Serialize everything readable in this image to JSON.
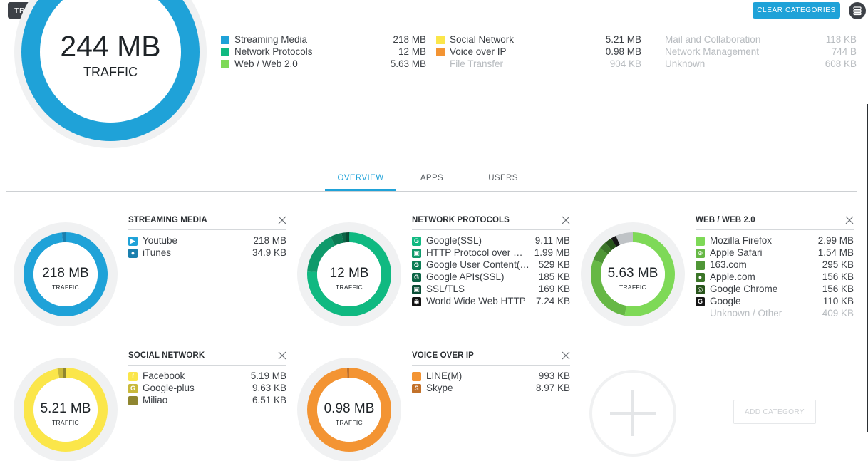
{
  "header": {
    "dropdown_label": "TRAFFIC STATS",
    "clear_label": "CLEAR CATEGORIES"
  },
  "total": {
    "value": "244 MB",
    "label": "TRAFFIC",
    "color": "#1fa2d8"
  },
  "legend": [
    {
      "name": "Streaming Media",
      "value": "218 MB",
      "color": "#1fa2d8",
      "dim": false
    },
    {
      "name": "Network Protocols",
      "value": "12 MB",
      "color": "#10b981",
      "dim": false
    },
    {
      "name": "Web / Web 2.0",
      "value": "5.63 MB",
      "color": "#7ed957",
      "dim": false
    },
    {
      "name": "Social Network",
      "value": "5.21 MB",
      "color": "#fbe64a",
      "dim": false
    },
    {
      "name": "Voice over IP",
      "value": "0.98 MB",
      "color": "#f39433",
      "dim": false
    },
    {
      "name": "File Transfer",
      "value": "904 KB",
      "color": "",
      "dim": true
    },
    {
      "name": "Mail and Collaboration",
      "value": "118 KB",
      "color": "",
      "dim": true
    },
    {
      "name": "Network Management",
      "value": "744 B",
      "color": "",
      "dim": true
    },
    {
      "name": "Unknown",
      "value": "608 KB",
      "color": "",
      "dim": true
    }
  ],
  "tabs": [
    {
      "label": "OVERVIEW",
      "active": true
    },
    {
      "label": "APPS",
      "active": false
    },
    {
      "label": "USERS",
      "active": false
    }
  ],
  "cards": [
    {
      "title": "STREAMING MEDIA",
      "value": "218 MB",
      "label": "TRAFFIC",
      "colors": [
        "#1fa2d8",
        "#1a7fae"
      ],
      "fractions": [
        0.985,
        0.015
      ],
      "items": [
        {
          "name": "Youtube",
          "value": "218 MB",
          "icon": "youtube-icon",
          "icon_color": "#1fa2d8",
          "dim": false
        },
        {
          "name": "iTunes",
          "value": "34.9 KB",
          "icon": "apple-icon",
          "icon_color": "#1a7fae",
          "dim": false
        }
      ]
    },
    {
      "title": "NETWORK PROTOCOLS",
      "value": "12 MB",
      "label": "TRAFFIC",
      "colors": [
        "#10b981",
        "#0f9a6b",
        "#0c7d55",
        "#0b6445",
        "#094c35",
        "#111111"
      ],
      "fractions": [
        0.76,
        0.166,
        0.044,
        0.015,
        0.014,
        0.001
      ],
      "items": [
        {
          "name": "Google(SSL)",
          "value": "9.11 MB",
          "icon": "google-icon",
          "icon_color": "#10b981",
          "dim": false
        },
        {
          "name": "HTTP Protocol over …",
          "value": "1.99 MB",
          "icon": "lock-icon",
          "icon_color": "#0f9a6b",
          "dim": false
        },
        {
          "name": "Google User Content(…",
          "value": "529 KB",
          "icon": "google-icon",
          "icon_color": "#0c7d55",
          "dim": false
        },
        {
          "name": "Google APIs(SSL)",
          "value": "185 KB",
          "icon": "google-icon",
          "icon_color": "#0b6445",
          "dim": false
        },
        {
          "name": "SSL/TLS",
          "value": "169 KB",
          "icon": "lock-icon",
          "icon_color": "#094c35",
          "dim": false
        },
        {
          "name": "World Wide Web HTTP",
          "value": "7.24 KB",
          "icon": "globe-icon",
          "icon_color": "#111111",
          "dim": false
        }
      ]
    },
    {
      "title": "WEB / WEB 2.0",
      "value": "5.63 MB",
      "label": "TRAFFIC",
      "colors": [
        "#7ed957",
        "#66b845",
        "#4f9636",
        "#3b7528",
        "#28541b",
        "#151515",
        "#bfc3c6"
      ],
      "fractions": [
        0.531,
        0.274,
        0.052,
        0.028,
        0.028,
        0.02,
        0.067
      ],
      "items": [
        {
          "name": "Mozilla Firefox",
          "value": "2.99 MB",
          "icon": "firefox-icon",
          "icon_color": "#7ed957",
          "dim": false
        },
        {
          "name": "Apple Safari",
          "value": "1.54 MB",
          "icon": "safari-icon",
          "icon_color": "#66b845",
          "dim": false
        },
        {
          "name": "163.com",
          "value": "295 KB",
          "icon": "site-icon",
          "icon_color": "#4f9636",
          "dim": false
        },
        {
          "name": "Apple.com",
          "value": "156 KB",
          "icon": "apple-icon",
          "icon_color": "#3b7528",
          "dim": false
        },
        {
          "name": "Google Chrome",
          "value": "156 KB",
          "icon": "chrome-icon",
          "icon_color": "#28541b",
          "dim": false
        },
        {
          "name": "Google",
          "value": "110 KB",
          "icon": "google-icon",
          "icon_color": "#151515",
          "dim": false
        },
        {
          "name": "Unknown / Other",
          "value": "409 KB",
          "icon": "",
          "icon_color": "",
          "dim": true
        }
      ]
    },
    {
      "title": "SOCIAL NETWORK",
      "value": "5.21 MB",
      "label": "TRAFFIC",
      "colors": [
        "#fbe64a",
        "#c9b93b",
        "#8f8630"
      ],
      "fractions": [
        0.968,
        0.02,
        0.012
      ],
      "items": [
        {
          "name": "Facebook",
          "value": "5.19 MB",
          "icon": "facebook-icon",
          "icon_color": "#fbe64a",
          "dim": false
        },
        {
          "name": "Google-plus",
          "value": "9.63 KB",
          "icon": "google-icon",
          "icon_color": "#c9b93b",
          "dim": false
        },
        {
          "name": "Miliao",
          "value": "6.51 KB",
          "icon": "site-icon",
          "icon_color": "#8f8630",
          "dim": false
        }
      ]
    },
    {
      "title": "VOICE OVER IP",
      "value": "0.98 MB",
      "label": "TRAFFIC",
      "colors": [
        "#f39433",
        "#c2712a"
      ],
      "fractions": [
        0.99,
        0.01
      ],
      "items": [
        {
          "name": "LINE(M)",
          "value": "993 KB",
          "icon": "line-icon",
          "icon_color": "#f39433",
          "dim": false
        },
        {
          "name": "Skype",
          "value": "8.97 KB",
          "icon": "skype-icon",
          "icon_color": "#c2712a",
          "dim": false
        }
      ]
    }
  ],
  "add_category_label": "ADD CATEGORY"
}
